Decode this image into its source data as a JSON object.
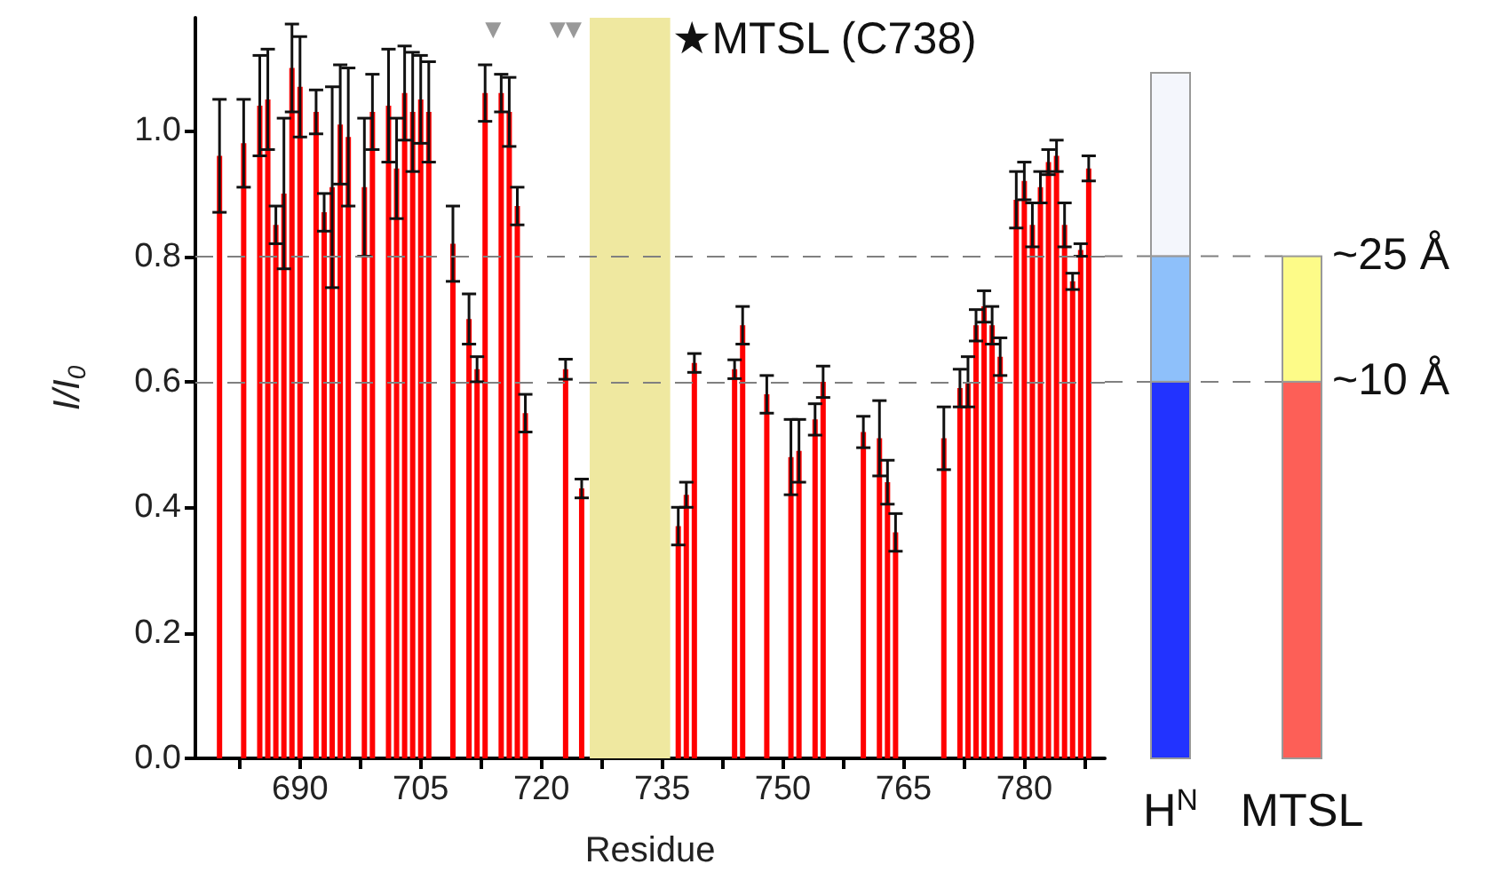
{
  "chart_data": {
    "type": "bar",
    "xlabel": "Residue",
    "ylabel": "I/I$_{0}$",
    "xlim": [
      677,
      790
    ],
    "xticks": [
      {
        "value": 682.5,
        "label": null
      },
      690,
      {
        "value": 697.5,
        "label": null
      },
      705,
      {
        "value": 712.5,
        "label": null
      },
      720,
      {
        "value": 727.5,
        "label": null
      },
      735,
      {
        "value": 742.5,
        "label": null
      },
      750,
      {
        "value": 757.5,
        "label": null
      },
      765,
      {
        "value": 772.5,
        "label": null
      },
      780,
      {
        "value": 787.5,
        "label": null
      }
    ],
    "ylim": [
      0,
      1.18
    ],
    "yticks": [
      {
        "value": 0,
        "label": "0.0"
      },
      {
        "value": 0.2,
        "label": "0.2"
      },
      {
        "value": 0.4,
        "label": "0.4"
      },
      {
        "value": 0.6,
        "label": "0.6"
      },
      {
        "value": 0.8,
        "label": "0.8"
      },
      {
        "value": 1,
        "label": "1.0"
      }
    ],
    "series": [
      {
        "type": "bar",
        "color": "#ff0000",
        "x": [
          680,
          683,
          685,
          686,
          687,
          688,
          689,
          690,
          692,
          693,
          694,
          695,
          696,
          698,
          699,
          701,
          702,
          703,
          704,
          705,
          706,
          709,
          711,
          712,
          713,
          715,
          716,
          717,
          718,
          723,
          725,
          737,
          738,
          739,
          744,
          745,
          748,
          751,
          752,
          754,
          755,
          760,
          762,
          763,
          764,
          770,
          772,
          773,
          774,
          775,
          776,
          777,
          779,
          780,
          781,
          782,
          783,
          784,
          785,
          786,
          787,
          788
        ],
        "values": [
          0.96,
          0.98,
          1.04,
          1.05,
          0.85,
          0.9,
          1.1,
          1.07,
          1.03,
          0.87,
          0.91,
          1.01,
          0.99,
          0.91,
          1.03,
          1.04,
          0.94,
          1.06,
          1.03,
          1.05,
          1.03,
          0.82,
          0.7,
          0.62,
          1.06,
          1.06,
          1.03,
          0.88,
          0.55,
          0.62,
          0.43,
          0.37,
          0.42,
          0.63,
          0.62,
          0.69,
          0.58,
          0.48,
          0.49,
          0.54,
          0.6,
          0.52,
          0.51,
          0.44,
          0.36,
          0.51,
          0.59,
          0.6,
          0.69,
          0.72,
          0.69,
          0.64,
          0.89,
          0.92,
          0.85,
          0.91,
          0.95,
          0.96,
          0.85,
          0.76,
          0.81,
          0.94
        ],
        "errors": [
          0.09,
          0.07,
          0.08,
          0.08,
          0.03,
          0.12,
          0.07,
          0.08,
          0.035,
          0.03,
          0.16,
          0.095,
          0.11,
          0.11,
          0.06,
          0.09,
          0.08,
          0.075,
          0.095,
          0.07,
          0.08,
          0.06,
          0.04,
          0.02,
          0.045,
          0.03,
          0.055,
          0.03,
          0.03,
          0.016,
          0.015,
          0.03,
          0.02,
          0.015,
          0.015,
          0.03,
          0.03,
          0.06,
          0.05,
          0.025,
          0.025,
          0.025,
          0.06,
          0.035,
          0.03,
          0.05,
          0.03,
          0.04,
          0.025,
          0.025,
          0.03,
          0.03,
          0.045,
          0.03,
          0.035,
          0.025,
          0.02,
          0.025,
          0.035,
          0.013,
          0.01,
          0.02
        ]
      },
      {
        "type": "scatter",
        "color": "#808080",
        "marker": "triangle",
        "x": [
          714,
          722,
          724
        ],
        "values": [
          1.16,
          1.16,
          1.16
        ]
      }
    ],
    "bands": [
      {
        "axis": "x",
        "from": 726,
        "to": 736,
        "color": "#efe8a0"
      }
    ],
    "ref_lines": [
      {
        "axis": "y",
        "value": 0.8,
        "label": "~25 Å",
        "color": "#808080",
        "line_style": "dashed"
      },
      {
        "axis": "y",
        "value": 0.6,
        "label": "~10 Å",
        "color": "#808080",
        "line_style": "dashed"
      }
    ],
    "annotations": [
      "★MTSL (C738)",
      "H$^{N}$",
      "MTSL"
    ]
  }
}
